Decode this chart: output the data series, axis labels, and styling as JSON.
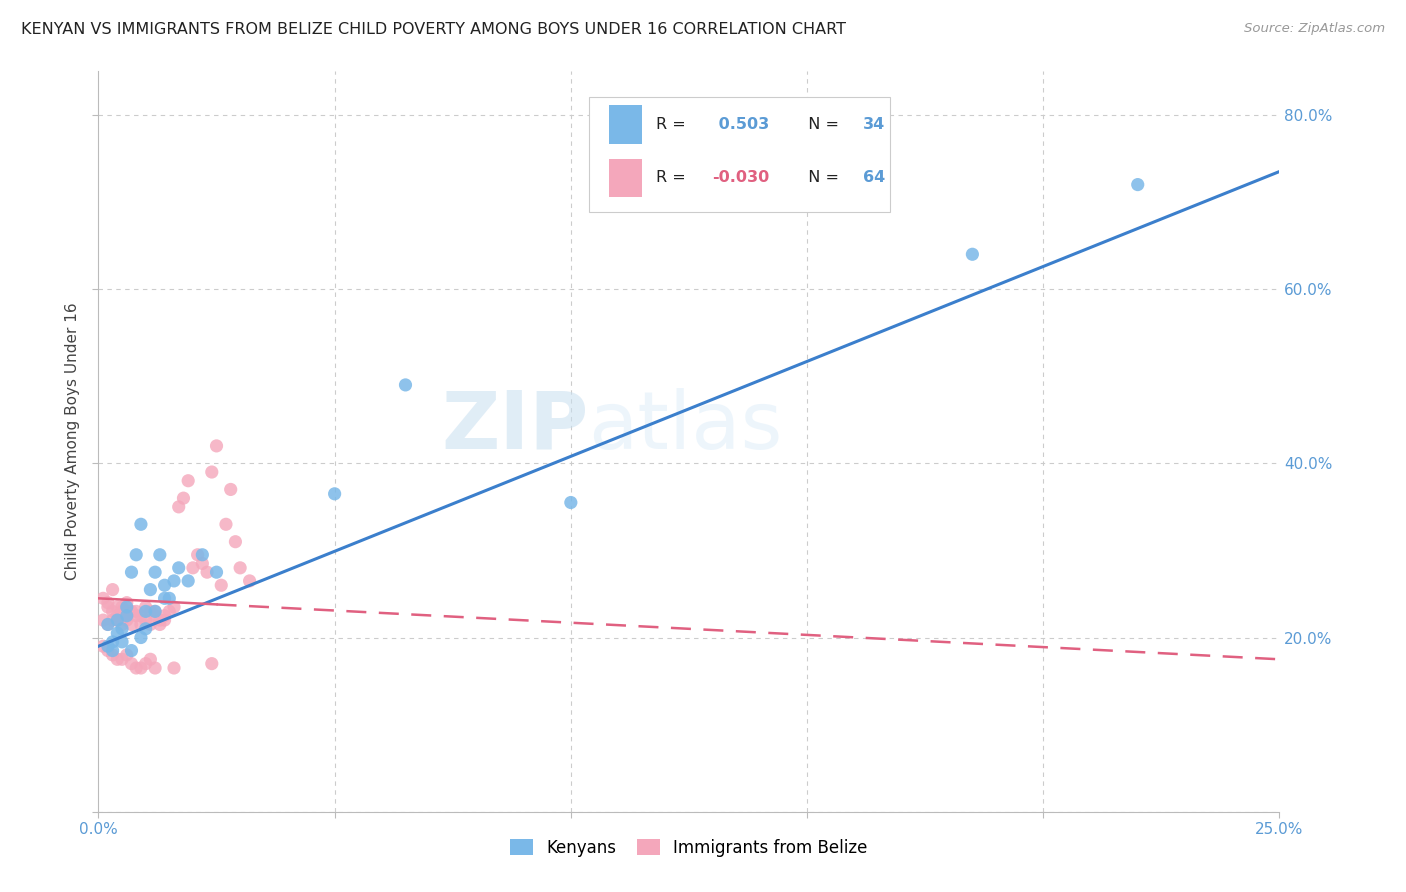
{
  "title": "KENYAN VS IMMIGRANTS FROM BELIZE CHILD POVERTY AMONG BOYS UNDER 16 CORRELATION CHART",
  "source": "Source: ZipAtlas.com",
  "ylabel": "Child Poverty Among Boys Under 16",
  "xlim": [
    0.0,
    0.25
  ],
  "ylim": [
    0.0,
    0.85
  ],
  "xticks": [
    0.0,
    0.05,
    0.1,
    0.15,
    0.2,
    0.25
  ],
  "yticks": [
    0.0,
    0.2,
    0.4,
    0.6,
    0.8
  ],
  "background_color": "#ffffff",
  "grid_color": "#cccccc",
  "blue_color": "#7ab8e8",
  "pink_color": "#f4a7bb",
  "blue_line_color": "#3b7fcc",
  "pink_line_color": "#e06080",
  "watermark_zip": "ZIP",
  "watermark_atlas": "atlas",
  "R_kenyan": 0.503,
  "N_kenyan": 34,
  "R_belize": -0.03,
  "N_belize": 64,
  "blue_line_y0": 0.19,
  "blue_line_y1": 0.735,
  "pink_line_y0": 0.245,
  "pink_line_y1": 0.175,
  "kenyan_x": [
    0.002,
    0.003,
    0.004,
    0.004,
    0.005,
    0.006,
    0.006,
    0.007,
    0.008,
    0.009,
    0.01,
    0.011,
    0.012,
    0.013,
    0.014,
    0.015,
    0.016,
    0.002,
    0.003,
    0.005,
    0.007,
    0.009,
    0.01,
    0.012,
    0.014,
    0.017,
    0.019,
    0.022,
    0.025,
    0.05,
    0.065,
    0.1,
    0.185,
    0.22
  ],
  "kenyan_y": [
    0.215,
    0.195,
    0.205,
    0.22,
    0.21,
    0.225,
    0.235,
    0.275,
    0.295,
    0.33,
    0.23,
    0.255,
    0.275,
    0.295,
    0.26,
    0.245,
    0.265,
    0.19,
    0.185,
    0.195,
    0.185,
    0.2,
    0.21,
    0.23,
    0.245,
    0.28,
    0.265,
    0.295,
    0.275,
    0.365,
    0.49,
    0.355,
    0.64,
    0.72
  ],
  "belize_x": [
    0.001,
    0.001,
    0.002,
    0.002,
    0.002,
    0.003,
    0.003,
    0.003,
    0.004,
    0.004,
    0.004,
    0.005,
    0.005,
    0.005,
    0.006,
    0.006,
    0.006,
    0.007,
    0.007,
    0.008,
    0.008,
    0.009,
    0.009,
    0.01,
    0.01,
    0.011,
    0.011,
    0.012,
    0.012,
    0.013,
    0.013,
    0.014,
    0.014,
    0.015,
    0.016,
    0.017,
    0.018,
    0.019,
    0.02,
    0.021,
    0.022,
    0.023,
    0.024,
    0.025,
    0.026,
    0.027,
    0.028,
    0.029,
    0.03,
    0.032,
    0.001,
    0.002,
    0.003,
    0.004,
    0.005,
    0.006,
    0.007,
    0.008,
    0.009,
    0.01,
    0.011,
    0.012,
    0.016,
    0.024
  ],
  "belize_y": [
    0.245,
    0.22,
    0.235,
    0.215,
    0.24,
    0.255,
    0.23,
    0.22,
    0.235,
    0.225,
    0.22,
    0.235,
    0.23,
    0.215,
    0.24,
    0.225,
    0.22,
    0.23,
    0.215,
    0.23,
    0.225,
    0.225,
    0.215,
    0.22,
    0.235,
    0.23,
    0.215,
    0.225,
    0.23,
    0.22,
    0.215,
    0.225,
    0.22,
    0.23,
    0.235,
    0.35,
    0.36,
    0.38,
    0.28,
    0.295,
    0.285,
    0.275,
    0.39,
    0.42,
    0.26,
    0.33,
    0.37,
    0.31,
    0.28,
    0.265,
    0.19,
    0.185,
    0.18,
    0.175,
    0.175,
    0.18,
    0.17,
    0.165,
    0.165,
    0.17,
    0.175,
    0.165,
    0.165,
    0.17
  ]
}
